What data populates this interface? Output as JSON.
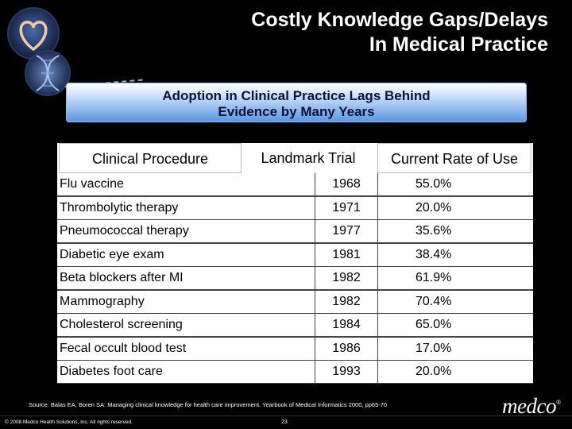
{
  "header": {
    "title_line1": "Costly Knowledge Gaps/Delays",
    "title_line2": "In Medical Practice"
  },
  "subtitle": {
    "line1": "Adoption in Clinical Practice Lags Behind",
    "line2": "Evidence by Many Years"
  },
  "table": {
    "columns": [
      "Clinical Procedure",
      "Landmark Trial",
      "Current Rate of Use"
    ],
    "rows": [
      {
        "procedure": "Flu vaccine",
        "trial": "1968",
        "rate": "55.0%"
      },
      {
        "procedure": "Thrombolytic therapy",
        "trial": "1971",
        "rate": "20.0%"
      },
      {
        "procedure": "Pneumococcal therapy",
        "trial": "1977",
        "rate": "35.6%"
      },
      {
        "procedure": "Diabetic eye exam",
        "trial": "1981",
        "rate": "38.4%"
      },
      {
        "procedure": "Beta blockers after MI",
        "trial": "1982",
        "rate": "61.9%"
      },
      {
        "procedure": "Mammography",
        "trial": "1982",
        "rate": "70.4%"
      },
      {
        "procedure": "Cholesterol screening",
        "trial": "1984",
        "rate": "65.0%"
      },
      {
        "procedure": "Fecal occult blood test",
        "trial": "1986",
        "rate": "17.0%"
      },
      {
        "procedure": "Diabetes foot care",
        "trial": "1993",
        "rate": "20.0%"
      }
    ]
  },
  "source": "Source:  Balas EA, Boren SA:  Managing clinical knowledge for health care improvement.  Yearbook of Medical Informatics 2000, pp65-70",
  "footer": {
    "copyright": "© 2008 Medco Health Solutions, Inc. All rights reserved.",
    "page_number": "23"
  },
  "brand": {
    "name": "medco",
    "mark": "®"
  },
  "colors": {
    "background": "#000000",
    "subtitle_box_top": "#ffffff",
    "subtitle_box_bottom": "#5a97e4",
    "table_bg": "#ffffff"
  }
}
